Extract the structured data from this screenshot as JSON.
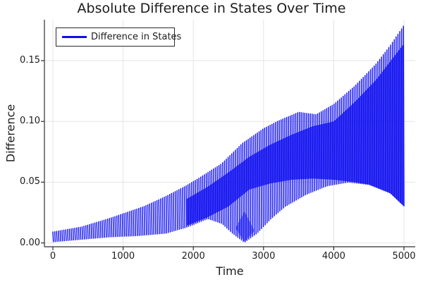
{
  "chart_data": {
    "type": "line",
    "title": "Absolute Difference in States Over Time",
    "xlabel": "Time",
    "ylabel": "Difference",
    "grid": true,
    "background": "#ffffff",
    "xlim": [
      -120,
      5180
    ],
    "ylim": [
      -0.0038,
      0.1835
    ],
    "x_ticks": {
      "values": [
        0,
        1000,
        2000,
        3000,
        4000,
        5000
      ],
      "labels": [
        "0",
        "1000",
        "2000",
        "3000",
        "4000",
        "5000"
      ]
    },
    "y_ticks": {
      "values": [
        0,
        0.05,
        0.1,
        0.15
      ],
      "labels": [
        "0.00",
        "0.05",
        "0.10",
        "0.15"
      ]
    },
    "legend": {
      "position": "top-left",
      "entries": [
        {
          "label": "Difference in States",
          "color": "#1111e6"
        }
      ]
    },
    "series": [
      {
        "name": "Difference in States",
        "color": "#0707f0",
        "type": "dense-absolute-oscillation",
        "oscillation_period_time_units": 26,
        "n_cycles_visible": 193,
        "upper_envelope": [
          [
            0,
            0.009
          ],
          [
            400,
            0.013
          ],
          [
            800,
            0.02
          ],
          [
            1000,
            0.024
          ],
          [
            1300,
            0.03
          ],
          [
            1600,
            0.038
          ],
          [
            1900,
            0.047
          ],
          [
            2100,
            0.054
          ],
          [
            2400,
            0.065
          ],
          [
            2700,
            0.082
          ],
          [
            3000,
            0.094
          ],
          [
            3200,
            0.1
          ],
          [
            3500,
            0.1075
          ],
          [
            3750,
            0.1055
          ],
          [
            4000,
            0.114
          ],
          [
            4300,
            0.129
          ],
          [
            4600,
            0.147
          ],
          [
            4800,
            0.162
          ],
          [
            5000,
            0.179
          ]
        ],
        "lower_envelope": [
          [
            0,
            0.001
          ],
          [
            400,
            0.003
          ],
          [
            800,
            0.005
          ],
          [
            1200,
            0.006
          ],
          [
            1600,
            0.008
          ],
          [
            1900,
            0.013
          ],
          [
            2200,
            0.02
          ],
          [
            2400,
            0.016
          ],
          [
            2550,
            0.008
          ],
          [
            2720,
            0.0005
          ],
          [
            2900,
            0.008
          ],
          [
            3100,
            0.02
          ],
          [
            3300,
            0.03
          ],
          [
            3600,
            0.04
          ],
          [
            3900,
            0.047
          ],
          [
            4200,
            0.05
          ],
          [
            4500,
            0.048
          ],
          [
            4800,
            0.041
          ],
          [
            5000,
            0.03
          ]
        ],
        "dense_bands": [
          {
            "opacity": 0.72,
            "top": [
              [
                1900,
                0.036
              ],
              [
                2200,
                0.046
              ],
              [
                2500,
                0.058
              ],
              [
                2800,
                0.071
              ],
              [
                3100,
                0.081
              ],
              [
                3400,
                0.089
              ],
              [
                3700,
                0.096
              ],
              [
                4000,
                0.1
              ],
              [
                4300,
                0.116
              ],
              [
                4600,
                0.134
              ],
              [
                4800,
                0.149
              ],
              [
                5000,
                0.164
              ]
            ],
            "bottom": [
              [
                1900,
                0.014
              ],
              [
                2200,
                0.021
              ],
              [
                2500,
                0.03
              ],
              [
                2800,
                0.044
              ],
              [
                3100,
                0.049
              ],
              [
                3400,
                0.052
              ],
              [
                3700,
                0.053
              ],
              [
                4000,
                0.052
              ],
              [
                4300,
                0.05
              ],
              [
                4500,
                0.048
              ],
              [
                4800,
                0.041
              ],
              [
                5000,
                0.03
              ]
            ]
          },
          {
            "opacity": 0.45,
            "polygon": [
              [
                2600,
                0.012
              ],
              [
                2730,
                0.001
              ],
              [
                2870,
                0.01
              ],
              [
                2730,
                0.026
              ]
            ]
          }
        ]
      }
    ]
  },
  "colors": {
    "series_blue": "#0707f0",
    "legend_line_blue": "#1111e6",
    "grid": "#e4e4e4",
    "axis": "#2f2f2f",
    "text": "#1c1c1c",
    "background": "#ffffff"
  }
}
